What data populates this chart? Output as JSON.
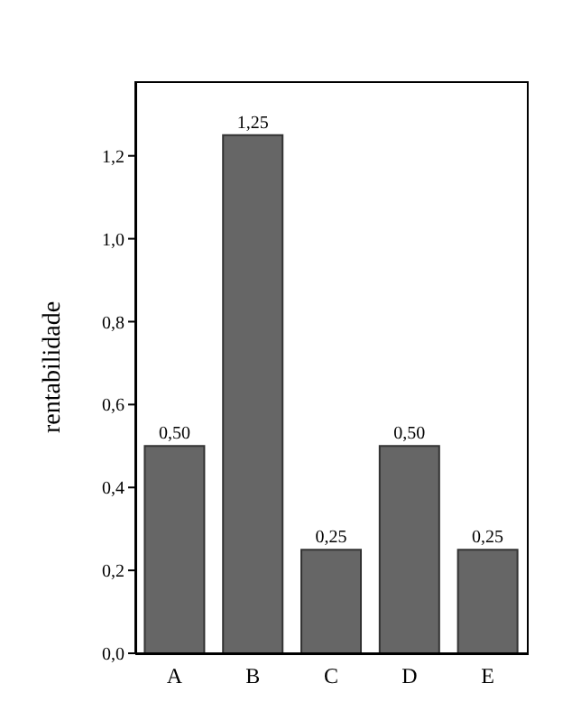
{
  "chart_data": {
    "type": "bar",
    "ylabel": "rentabilidade",
    "categories": [
      "A",
      "B",
      "C",
      "D",
      "E"
    ],
    "values": [
      0.5,
      1.25,
      0.25,
      0.5,
      0.25
    ],
    "value_labels": [
      "0,50",
      "1,25",
      "0,25",
      "0,50",
      "0,25"
    ],
    "color": "#666666",
    "ylim": [
      0,
      1.38
    ],
    "yticks": [
      {
        "value": 0,
        "label": "0,0"
      },
      {
        "value": 0.2,
        "label": "0,2"
      },
      {
        "value": 0.4,
        "label": "0,4"
      },
      {
        "value": 0.6,
        "label": "0,6"
      },
      {
        "value": 0.8,
        "label": "0,8"
      },
      {
        "value": 1.0,
        "label": "1,0"
      },
      {
        "value": 1.2,
        "label": "1,2"
      }
    ],
    "grid": false
  }
}
